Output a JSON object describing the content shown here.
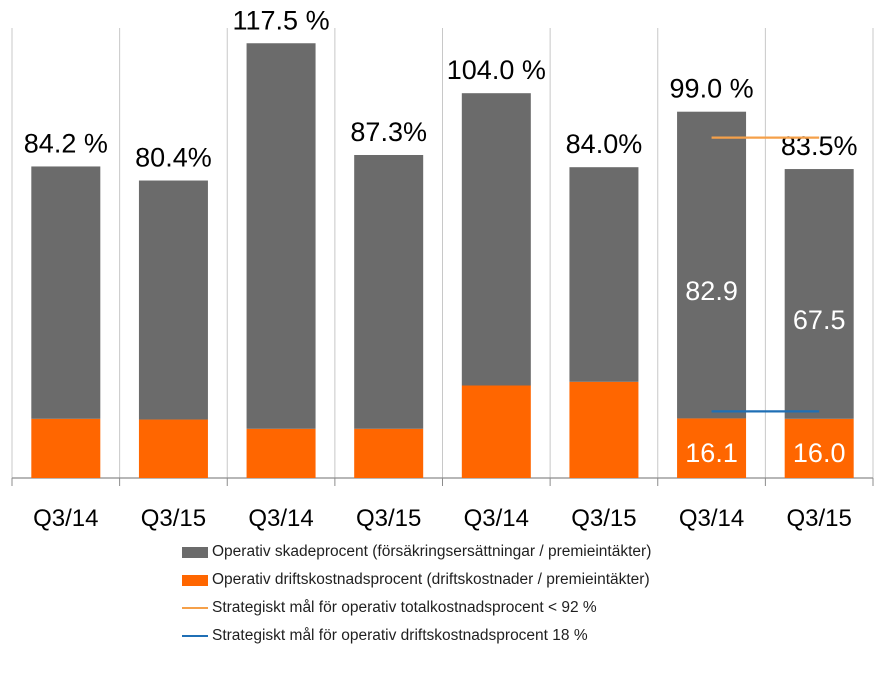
{
  "chart_data": {
    "type": "bar",
    "stacked": true,
    "categories": [
      "Q3/14",
      "Q3/15",
      "Q3/14",
      "Q3/15",
      "Q3/14",
      "Q3/15",
      "Q3/14",
      "Q3/15"
    ],
    "series": [
      {
        "name": "Operativ driftskostnadsprocent (driftskostnader / premieintäkter)",
        "color": "#ff6600",
        "values": [
          16.0,
          15.8,
          13.3,
          13.3,
          25.0,
          26.0,
          16.1,
          16.0
        ],
        "data_labels": [
          "",
          "",
          "",
          "",
          "",
          "",
          "16.1",
          "16.0"
        ]
      },
      {
        "name": "Operativ skadeprocent (försäkringsersättningar / premieintäkter)",
        "color": "#6b6b6b",
        "values": [
          68.2,
          64.6,
          104.2,
          74.0,
          79.0,
          58.0,
          82.9,
          67.5
        ],
        "data_labels": [
          "",
          "",
          "",
          "",
          "",
          "",
          "82.9",
          "67.5"
        ]
      }
    ],
    "totals": [
      84.2,
      80.4,
      117.5,
      87.3,
      104.0,
      84.0,
      99.0,
      83.5
    ],
    "total_labels": [
      "84.2 %",
      "80.4%",
      "117.5 %",
      "87.3%",
      "104.0 %",
      "84.0%",
      "99.0 %",
      "83.5%"
    ],
    "reference_lines": [
      {
        "name": "Strategiskt mål för operativ totalkostnadsprocent < 92 %",
        "color": "#f5a04a",
        "value": 92,
        "categories_span": [
          6,
          7
        ]
      },
      {
        "name": "Strategiskt mål för operativ driftskostnadsprocent 18 %",
        "color": "#1f6fb5",
        "value": 18,
        "categories_span": [
          6,
          7
        ]
      }
    ],
    "ylim": [
      0,
      120
    ],
    "grid": "vertical-separators",
    "legend_position": "bottom"
  },
  "legend": [
    {
      "label": "Operativ skadeprocent (försäkringsersättningar / premieintäkter)",
      "color": "#6b6b6b",
      "kind": "box"
    },
    {
      "label": "Operativ driftskostnadsprocent (driftskostnader / premieintäkter)",
      "color": "#ff6600",
      "kind": "box"
    },
    {
      "label": "Strategiskt mål för operativ totalkostnadsprocent < 92 %",
      "color": "#f5a04a",
      "kind": "line"
    },
    {
      "label": "Strategiskt mål för operativ driftskostnadsprocent 18 %",
      "color": "#1f6fb5",
      "kind": "line"
    }
  ]
}
